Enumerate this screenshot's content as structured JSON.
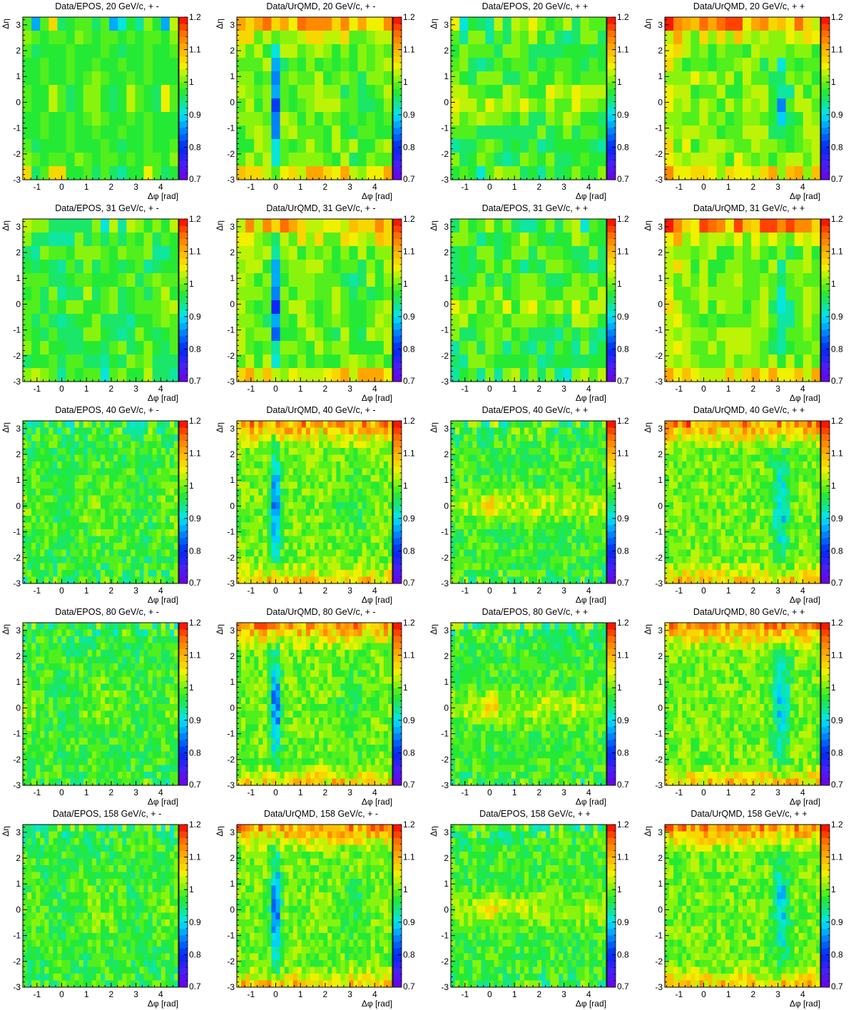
{
  "chart_data": {
    "type": "heatmap",
    "layout": "5 rows x 4 columns",
    "xlabel": "Δφ [rad]",
    "ylabel": "Δη",
    "xlim": [
      -1.5708,
      4.7124
    ],
    "ylim": [
      -3,
      3.3
    ],
    "xticks": [
      -1,
      0,
      1,
      2,
      3,
      4
    ],
    "yticks": [
      -3,
      -2,
      -1,
      0,
      1,
      2,
      3
    ],
    "color_scale": {
      "min": 0.7,
      "max": 1.2,
      "ticks": [
        0.7,
        0.8,
        0.9,
        1,
        1.1,
        1.2
      ]
    },
    "color_ticks_text": [
      "0.7",
      "0.8",
      "0.9",
      "1",
      "1.1",
      "1.2"
    ],
    "x_ticks_text": [
      "-1",
      "0",
      "1",
      "2",
      "3",
      "4"
    ],
    "y_ticks_text": [
      "-3",
      "-2",
      "-1",
      "0",
      "1",
      "2",
      "3"
    ],
    "panels": [
      {
        "title": "Data/EPOS, 20 GeV/c, + -",
        "model": "EPOS",
        "charge": "+-",
        "nx": 18,
        "ny": 12,
        "values_rows_top_to_bottom": [
          [
            0.98,
            0.86,
            0.98,
            1.07,
            0.95,
            0.97,
            0.98,
            0.98,
            0.94,
            0.98,
            0.86,
            0.9,
            0.97,
            0.92,
            1.0,
            0.97,
            0.86,
            1.03
          ],
          [
            1.0,
            0.98,
            0.96,
            0.99,
            0.98,
            0.97,
            1.0,
            0.98,
            0.97,
            0.99,
            0.98,
            0.96,
            0.98,
            0.97,
            0.99,
            0.98,
            0.97,
            1.0
          ],
          [
            0.98,
            0.95,
            0.97,
            0.97,
            0.96,
            0.98,
            0.97,
            0.96,
            0.97,
            0.98,
            0.97,
            0.95,
            0.96,
            0.97,
            0.98,
            0.96,
            0.97,
            0.98
          ],
          [
            0.96,
            0.97,
            0.98,
            0.96,
            0.97,
            0.98,
            0.96,
            0.97,
            0.98,
            0.96,
            0.97,
            0.98,
            0.96,
            0.97,
            0.98,
            0.97,
            0.96,
            0.97
          ],
          [
            0.97,
            0.97,
            0.98,
            0.97,
            0.96,
            0.98,
            0.97,
            0.99,
            1.0,
            0.98,
            0.97,
            0.96,
            0.98,
            0.97,
            0.98,
            0.97,
            0.96,
            0.97
          ],
          [
            0.98,
            0.96,
            0.97,
            1.02,
            0.98,
            0.95,
            0.97,
            1.01,
            1.0,
            0.97,
            0.95,
            0.97,
            1.02,
            0.98,
            0.97,
            0.95,
            1.05,
            0.98
          ],
          [
            0.98,
            0.96,
            0.97,
            1.02,
            0.98,
            0.95,
            0.97,
            1.01,
            1.0,
            0.97,
            0.95,
            0.97,
            1.02,
            0.98,
            0.97,
            0.95,
            1.05,
            0.98
          ],
          [
            0.97,
            0.97,
            0.98,
            0.97,
            0.96,
            0.98,
            0.97,
            0.99,
            1.0,
            0.98,
            0.97,
            0.96,
            0.98,
            0.97,
            0.98,
            0.97,
            0.96,
            0.97
          ],
          [
            0.96,
            0.97,
            0.98,
            0.96,
            0.97,
            0.98,
            0.96,
            0.97,
            0.98,
            0.96,
            0.97,
            0.98,
            0.96,
            0.97,
            0.98,
            0.97,
            0.96,
            0.97
          ],
          [
            0.98,
            0.95,
            0.97,
            0.97,
            0.96,
            0.98,
            0.97,
            0.96,
            0.97,
            0.98,
            0.97,
            0.95,
            0.96,
            0.97,
            0.98,
            0.96,
            0.97,
            0.98
          ],
          [
            1.0,
            0.98,
            0.96,
            0.99,
            0.98,
            0.97,
            1.0,
            0.98,
            0.97,
            0.99,
            0.98,
            0.96,
            0.98,
            0.97,
            0.99,
            0.98,
            0.97,
            1.0
          ],
          [
            1.06,
            0.95,
            0.98,
            1.07,
            1.06,
            0.96,
            0.97,
            0.98,
            0.95,
            0.98,
            0.95,
            0.93,
            0.97,
            0.96,
            1.05,
            0.98,
            0.95,
            0.97
          ]
        ]
      },
      {
        "title": "Data/UrQMD, 20 GeV/c, + -",
        "model": "UrQMD",
        "charge": "+-",
        "nx": 18,
        "ny": 12,
        "pattern": "near-side dip at Δφ=0, mild away-side dip"
      },
      {
        "title": "Data/EPOS, 20 GeV/c, + +",
        "model": "EPOS",
        "charge": "++",
        "nx": 18,
        "ny": 12,
        "pattern": "enhanced band at Δη≈0"
      },
      {
        "title": "Data/UrQMD, 20 GeV/c, + +",
        "model": "UrQMD",
        "charge": "++",
        "nx": 18,
        "ny": 12,
        "pattern": "away-side dip at Δφ≈π, edges enhanced"
      },
      {
        "title": "Data/EPOS, 31 GeV/c, + -",
        "model": "EPOS",
        "charge": "+-",
        "nx": 18,
        "ny": 12,
        "pattern": "flat near 0.97-1.0"
      },
      {
        "title": "Data/UrQMD, 31 GeV/c, + -",
        "model": "UrQMD",
        "charge": "+-",
        "nx": 18,
        "ny": 12,
        "pattern": "deep near-side dip, edges enhanced"
      },
      {
        "title": "Data/EPOS, 31 GeV/c, + +",
        "model": "EPOS",
        "charge": "++",
        "nx": 18,
        "ny": 12,
        "pattern": "mild band at Δη≈0"
      },
      {
        "title": "Data/UrQMD, 31 GeV/c, + +",
        "model": "UrQMD",
        "charge": "++",
        "nx": 18,
        "ny": 12,
        "pattern": "away-side dip, edges enhanced"
      },
      {
        "title": "Data/EPOS, 40 GeV/c, + -",
        "model": "EPOS",
        "charge": "+-",
        "nx": 36,
        "ny": 24,
        "pattern": "mild bumps at Δφ≈-π/2, π/2, 3π/2"
      },
      {
        "title": "Data/UrQMD, 40 GeV/c, + -",
        "model": "UrQMD",
        "charge": "+-",
        "nx": 36,
        "ny": 24,
        "pattern": "narrow near-side dip, noisy edges"
      },
      {
        "title": "Data/EPOS, 40 GeV/c, + +",
        "model": "EPOS",
        "charge": "++",
        "nx": 36,
        "ny": 24,
        "pattern": "near-side peak at origin"
      },
      {
        "title": "Data/UrQMD, 40 GeV/c, + +",
        "model": "UrQMD",
        "charge": "++",
        "nx": 36,
        "ny": 24,
        "pattern": "away-side dip, enhanced edges"
      },
      {
        "title": "Data/EPOS, 80 GeV/c, + -",
        "model": "EPOS",
        "charge": "+-",
        "nx": 36,
        "ny": 24,
        "pattern": "mild bumps at Δφ≈-π/2, π/2, 3π/2"
      },
      {
        "title": "Data/UrQMD, 80 GeV/c, + -",
        "model": "UrQMD",
        "charge": "+-",
        "nx": 36,
        "ny": 24,
        "pattern": "near-side dip"
      },
      {
        "title": "Data/EPOS, 80 GeV/c, + +",
        "model": "EPOS",
        "charge": "++",
        "nx": 36,
        "ny": 24,
        "pattern": "near-side peak at origin"
      },
      {
        "title": "Data/UrQMD, 80 GeV/c, + +",
        "model": "UrQMD",
        "charge": "++",
        "nx": 36,
        "ny": 24,
        "pattern": "noisy, enhanced edges"
      },
      {
        "title": "Data/EPOS, 158 GeV/c, + -",
        "model": "EPOS",
        "charge": "+-",
        "nx": 36,
        "ny": 24,
        "pattern": "mild bumps at Δφ≈-π/2, π/2, 3π/2"
      },
      {
        "title": "Data/UrQMD, 158 GeV/c, + -",
        "model": "UrQMD",
        "charge": "+-",
        "nx": 36,
        "ny": 24,
        "pattern": "near-side dip"
      },
      {
        "title": "Data/EPOS, 158 GeV/c, + +",
        "model": "EPOS",
        "charge": "++",
        "nx": 36,
        "ny": 24,
        "pattern": "near-side peak at origin"
      },
      {
        "title": "Data/UrQMD, 158 GeV/c, + +",
        "model": "UrQMD",
        "charge": "++",
        "nx": 36,
        "ny": 24,
        "pattern": "noisy, enhanced top edge"
      }
    ]
  }
}
